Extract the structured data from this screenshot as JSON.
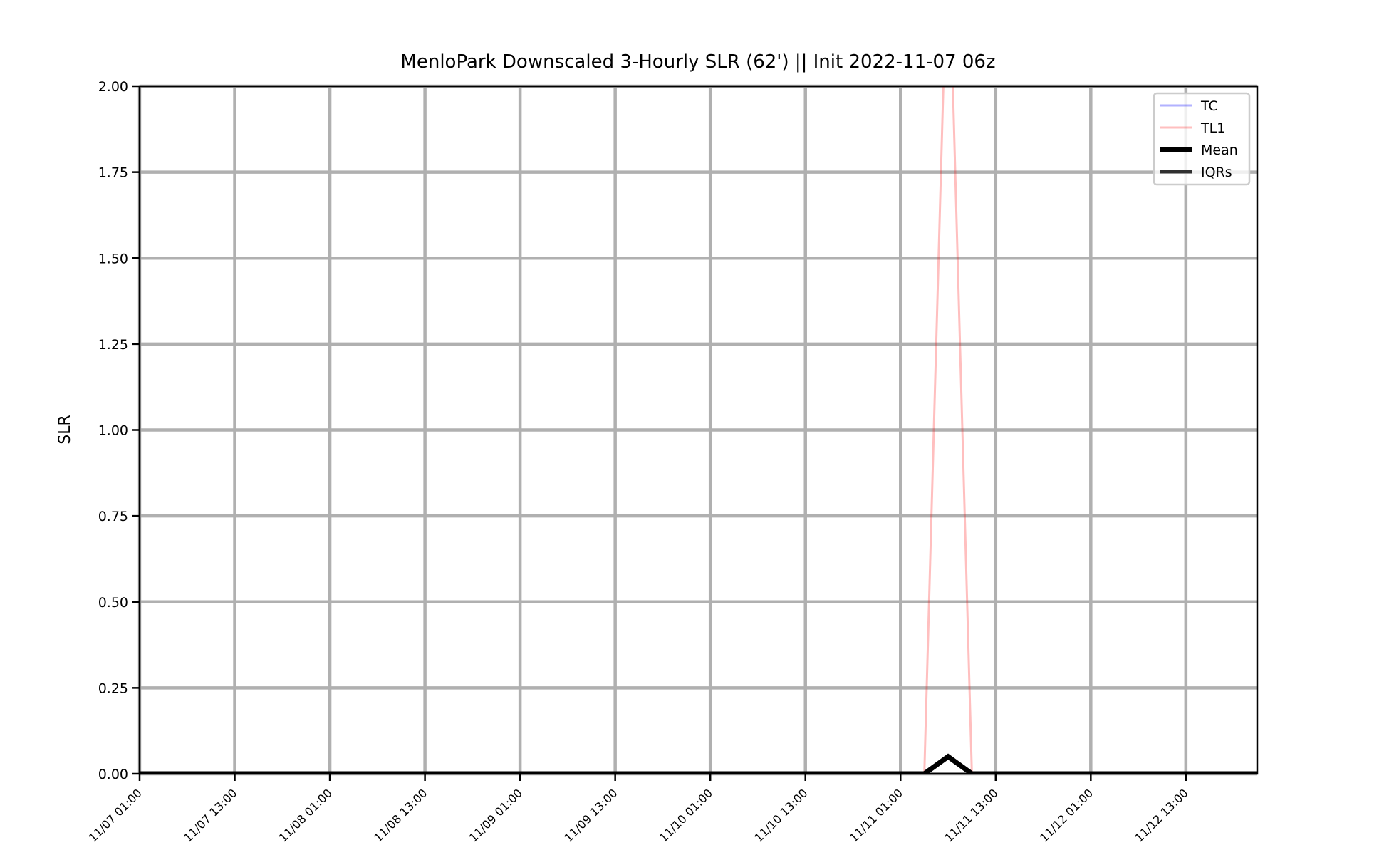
{
  "chart_data": {
    "type": "line",
    "title": "MenloPark Downscaled 3-Hourly SLR (62') || Init 2022-11-07 06z",
    "xlabel": "",
    "ylabel": "SLR",
    "ylim": [
      0,
      2
    ],
    "xlim_hours": [
      0,
      141
    ],
    "grid": true,
    "legend_position": "upper right",
    "y_ticks": [
      "0.00",
      "0.25",
      "0.50",
      "0.75",
      "1.00",
      "1.25",
      "1.50",
      "1.75",
      "2.00"
    ],
    "x_ticks": [
      "11/07 01:00",
      "11/07 13:00",
      "11/08 01:00",
      "11/08 13:00",
      "11/09 01:00",
      "11/09 13:00",
      "11/10 01:00",
      "11/10 13:00",
      "11/11 01:00",
      "11/11 13:00",
      "11/12 01:00",
      "11/12 13:00"
    ],
    "series": [
      {
        "name": "TC",
        "color": "#0000ff",
        "opacity": 0.3,
        "width": 3,
        "points": []
      },
      {
        "name": "TL1",
        "color": "#ff0000",
        "opacity": 0.25,
        "width": 3,
        "points": [
          [
            "11/11 04:00",
            0
          ],
          [
            "11/11 07:00",
            2.5
          ],
          [
            "11/11 10:00",
            0
          ]
        ]
      },
      {
        "name": "Mean",
        "color": "#000000",
        "opacity": 1,
        "width": 7,
        "points": [
          [
            "11/07 01:00",
            0
          ],
          [
            "11/11 04:00",
            0
          ],
          [
            "11/11 07:00",
            0.05
          ],
          [
            "11/11 10:00",
            0
          ],
          [
            "11/12 25:00",
            0
          ]
        ]
      },
      {
        "name": "IQRs",
        "color": "#000000",
        "opacity": 0.8,
        "width": 5,
        "points": []
      }
    ]
  }
}
